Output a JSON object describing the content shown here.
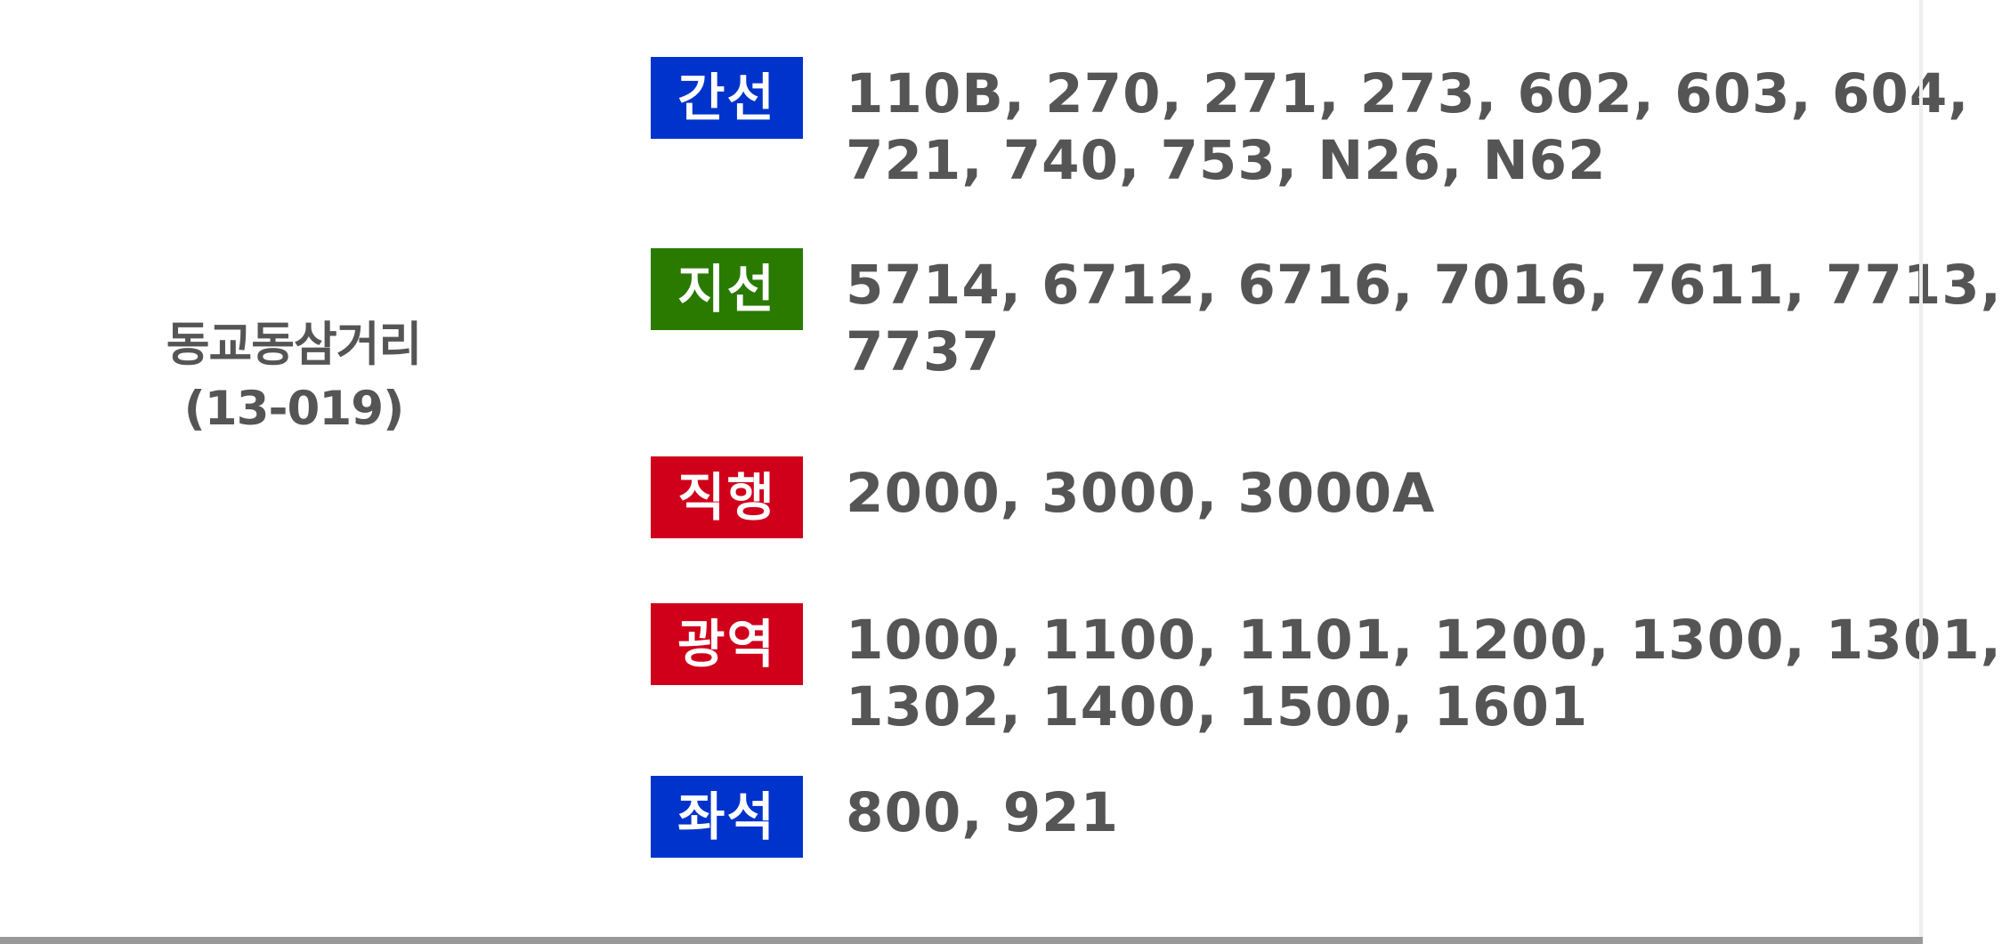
{
  "stop": {
    "name": "동교동삼거리",
    "id": "(13-019)"
  },
  "routes": [
    {
      "type": "간선",
      "color": "#0033cc",
      "lines": [
        "110B, 270, 271, 273, 602, 603, 604,",
        "721, 740, 753, N26, N62"
      ]
    },
    {
      "type": "지선",
      "color": "#2a7a00",
      "lines": [
        "5714, 6712, 6716, 7016, 7611, 7713,",
        "7737"
      ]
    },
    {
      "type": "직행",
      "color": "#d0001b",
      "lines": [
        "2000, 3000, 3000A"
      ]
    },
    {
      "type": "광역",
      "color": "#d0001b",
      "lines": [
        "1000, 1100, 1101, 1200, 1300, 1301,",
        "1302, 1400, 1500, 1601"
      ]
    },
    {
      "type": "좌석",
      "color": "#0033cc",
      "lines": [
        "800, 921"
      ]
    }
  ]
}
